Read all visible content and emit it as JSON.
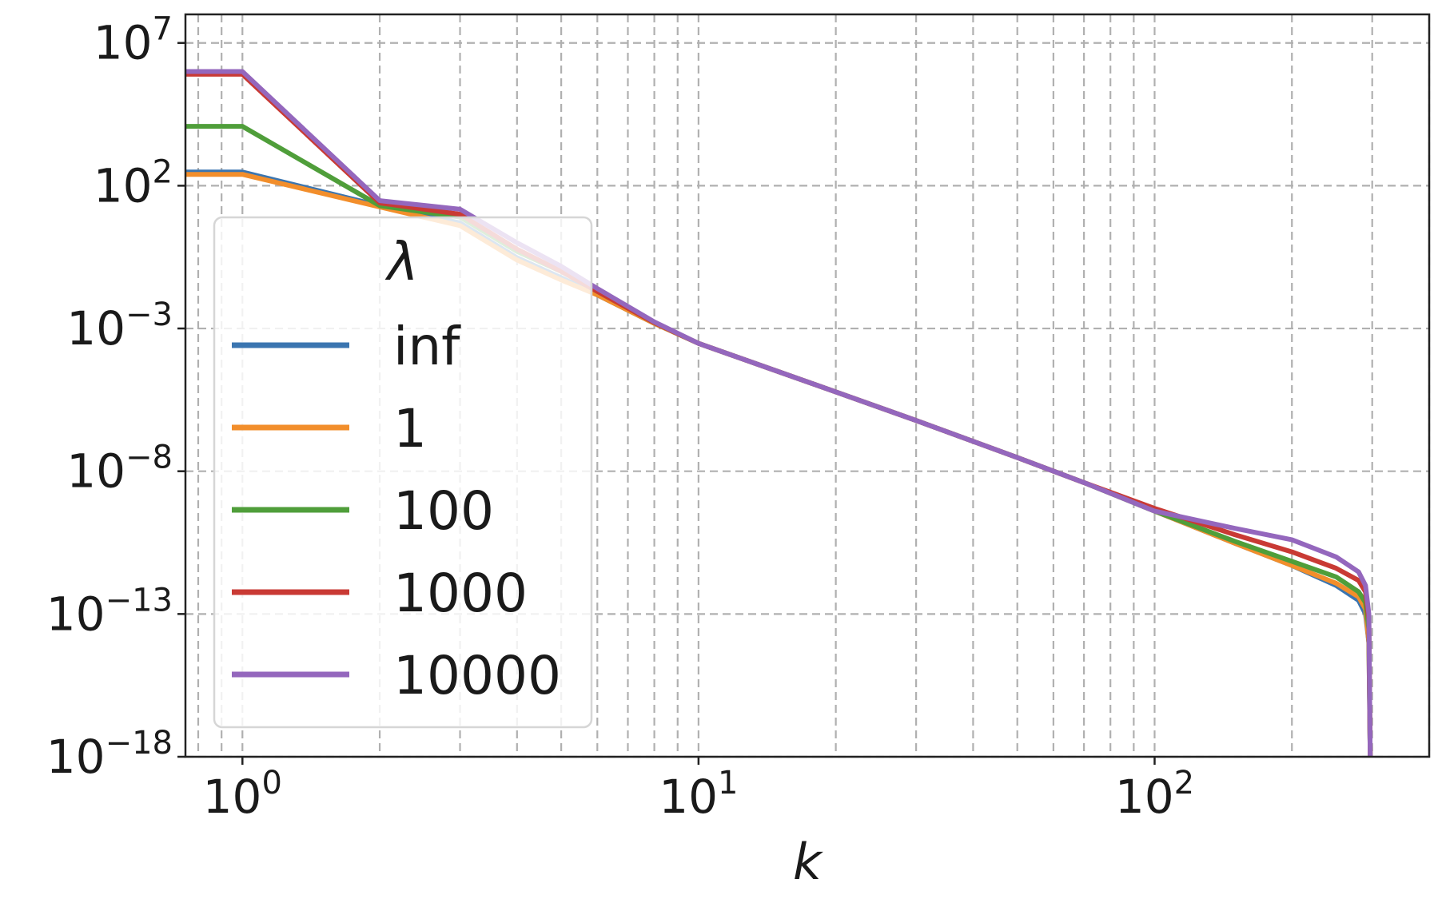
{
  "chart_data": {
    "type": "line",
    "title": "",
    "xlabel": "k",
    "ylabel": "",
    "x_scale": "log",
    "y_scale": "log",
    "xlim": [
      0.75,
      400
    ],
    "ylim": [
      1e-18,
      100000000.0
    ],
    "x_ticks": [
      {
        "value": 1,
        "base": "10",
        "exp": "0"
      },
      {
        "value": 10,
        "base": "10",
        "exp": "1"
      },
      {
        "value": 100,
        "base": "10",
        "exp": "2"
      }
    ],
    "y_ticks": [
      {
        "value": 10000000.0,
        "base": "10",
        "exp": "7"
      },
      {
        "value": 100.0,
        "base": "10",
        "exp": "2"
      },
      {
        "value": 0.001,
        "base": "10",
        "exp": "−3"
      },
      {
        "value": 1e-08,
        "base": "10",
        "exp": "−8"
      },
      {
        "value": 1e-13,
        "base": "10",
        "exp": "−13"
      },
      {
        "value": 1e-18,
        "base": "10",
        "exp": "−18"
      }
    ],
    "grid": true,
    "grid_style": "dashed",
    "legend": {
      "title": "λ",
      "placement": "center-left"
    },
    "series": [
      {
        "name": "inf",
        "color": "#3a75b0",
        "points": [
          [
            0.75,
            300.0
          ],
          [
            1,
            300.0
          ],
          [
            2,
            20.0
          ],
          [
            3,
            5
          ],
          [
            4,
            0.3
          ],
          [
            5,
            0.06
          ],
          [
            6,
            0.015
          ],
          [
            8,
            0.0015
          ],
          [
            10,
            0.0003
          ],
          [
            20,
            6e-06
          ],
          [
            30,
            6e-07
          ],
          [
            50,
            3e-08
          ],
          [
            70,
            4e-09
          ],
          [
            100,
            4e-10
          ],
          [
            150,
            3e-11
          ],
          [
            200,
            5e-12
          ],
          [
            250,
            1e-12
          ],
          [
            280,
            3e-13
          ],
          [
            290,
            1e-13
          ],
          [
            295,
            1e-14
          ],
          [
            297,
            1e-18
          ]
        ]
      },
      {
        "name": "1",
        "color": "#f28e2b",
        "points": [
          [
            0.75,
            250.0
          ],
          [
            1,
            250.0
          ],
          [
            2,
            18.0
          ],
          [
            3,
            4
          ],
          [
            4,
            0.25
          ],
          [
            5,
            0.05
          ],
          [
            6,
            0.015
          ],
          [
            8,
            0.0015
          ],
          [
            10,
            0.0003
          ],
          [
            20,
            6e-06
          ],
          [
            30,
            6e-07
          ],
          [
            50,
            3e-08
          ],
          [
            70,
            4e-09
          ],
          [
            100,
            4e-10
          ],
          [
            150,
            3e-11
          ],
          [
            200,
            5e-12
          ],
          [
            250,
            1.2e-12
          ],
          [
            280,
            4e-13
          ],
          [
            290,
            1.5e-13
          ],
          [
            295,
            1e-14
          ],
          [
            297,
            1e-18
          ]
        ]
      },
      {
        "name": "100",
        "color": "#4f9e3a",
        "points": [
          [
            0.75,
            12000.0
          ],
          [
            1,
            12000.0
          ],
          [
            2,
            20.0
          ],
          [
            3,
            8
          ],
          [
            4,
            0.5
          ],
          [
            5,
            0.1
          ],
          [
            6,
            0.02
          ],
          [
            8,
            0.0016
          ],
          [
            10,
            0.0003
          ],
          [
            20,
            6e-06
          ],
          [
            30,
            6e-07
          ],
          [
            50,
            3e-08
          ],
          [
            70,
            4e-09
          ],
          [
            100,
            4e-10
          ],
          [
            150,
            3.5e-11
          ],
          [
            200,
            7e-12
          ],
          [
            250,
            2e-12
          ],
          [
            280,
            6e-13
          ],
          [
            290,
            2.5e-13
          ],
          [
            295,
            3e-14
          ],
          [
            297,
            1e-18
          ]
        ]
      },
      {
        "name": "1000",
        "color": "#c93a34",
        "points": [
          [
            0.75,
            800000.0
          ],
          [
            1,
            800000.0
          ],
          [
            2,
            25.0
          ],
          [
            3,
            10.0
          ],
          [
            4,
            0.6
          ],
          [
            5,
            0.1
          ],
          [
            6,
            0.02
          ],
          [
            8,
            0.0016
          ],
          [
            10,
            0.0003
          ],
          [
            20,
            6e-06
          ],
          [
            30,
            6e-07
          ],
          [
            50,
            3e-08
          ],
          [
            70,
            4e-09
          ],
          [
            100,
            5e-10
          ],
          [
            150,
            6e-11
          ],
          [
            200,
            1.5e-11
          ],
          [
            250,
            4e-12
          ],
          [
            280,
            1.5e-12
          ],
          [
            290,
            6e-13
          ],
          [
            295,
            6e-14
          ],
          [
            297,
            1e-18
          ]
        ]
      },
      {
        "name": "10000",
        "color": "#9467bd",
        "points": [
          [
            0.75,
            1000000.0
          ],
          [
            1,
            1000000.0
          ],
          [
            2,
            30.0
          ],
          [
            3,
            15.0
          ],
          [
            4,
            1
          ],
          [
            5,
            0.15
          ],
          [
            6,
            0.025
          ],
          [
            8,
            0.0017
          ],
          [
            10,
            0.0003
          ],
          [
            20,
            6e-06
          ],
          [
            30,
            6e-07
          ],
          [
            50,
            3e-08
          ],
          [
            70,
            4e-09
          ],
          [
            100,
            4e-10
          ],
          [
            150,
            1e-10
          ],
          [
            200,
            4e-11
          ],
          [
            250,
            1e-11
          ],
          [
            280,
            3e-12
          ],
          [
            290,
            1e-12
          ],
          [
            295,
            1e-13
          ],
          [
            297,
            1e-18
          ]
        ]
      }
    ]
  }
}
